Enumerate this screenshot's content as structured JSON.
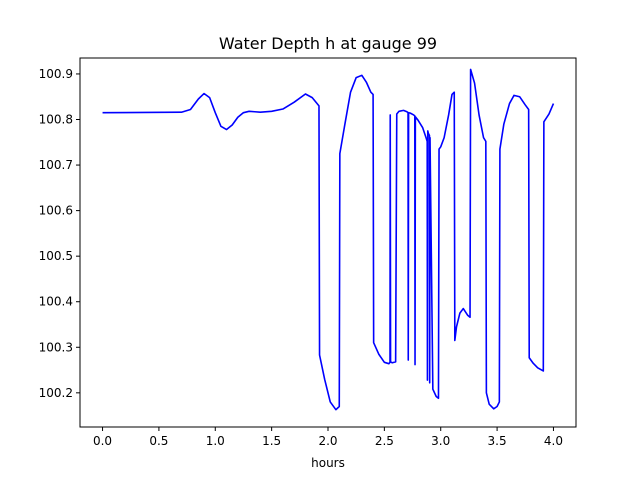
{
  "chart_data": {
    "type": "line",
    "title": "Water Depth h at gauge 99",
    "xlabel": "hours",
    "ylabel": "",
    "xlim": [
      -0.2,
      4.2
    ],
    "ylim": [
      100.125,
      100.935
    ],
    "xticks": [
      0.0,
      0.5,
      1.0,
      1.5,
      2.0,
      2.5,
      3.0,
      3.5,
      4.0
    ],
    "xtick_labels": [
      "0.0",
      "0.5",
      "1.0",
      "1.5",
      "2.0",
      "2.5",
      "3.0",
      "3.5",
      "4.0"
    ],
    "yticks": [
      100.2,
      100.3,
      100.4,
      100.5,
      100.6,
      100.7,
      100.8,
      100.9
    ],
    "ytick_labels": [
      "100.2",
      "100.3",
      "100.4",
      "100.5",
      "100.6",
      "100.7",
      "100.8",
      "100.9"
    ],
    "grid": false,
    "series": [
      {
        "color": "#0000ff",
        "x": [
          0.0,
          0.7,
          0.78,
          0.85,
          0.9,
          0.95,
          1.0,
          1.05,
          1.1,
          1.15,
          1.2,
          1.25,
          1.3,
          1.35,
          1.4,
          1.5,
          1.6,
          1.7,
          1.8,
          1.86,
          1.92,
          1.925,
          1.97,
          2.02,
          2.07,
          2.1,
          2.105,
          2.15,
          2.2,
          2.25,
          2.3,
          2.34,
          2.38,
          2.4,
          2.405,
          2.45,
          2.5,
          2.54,
          2.55,
          2.552,
          2.555,
          2.57,
          2.6,
          2.61,
          2.63,
          2.67,
          2.7,
          2.71,
          2.712,
          2.715,
          2.73,
          2.76,
          2.77,
          2.772,
          2.775,
          2.8,
          2.84,
          2.87,
          2.88,
          2.882,
          2.885,
          2.89,
          2.9,
          2.902,
          2.905,
          2.93,
          2.96,
          2.98,
          2.985,
          3.0,
          3.03,
          3.07,
          3.1,
          3.12,
          3.125,
          3.14,
          3.17,
          3.2,
          3.24,
          3.26,
          3.265,
          3.3,
          3.34,
          3.38,
          3.4,
          3.405,
          3.43,
          3.47,
          3.5,
          3.52,
          3.525,
          3.56,
          3.61,
          3.65,
          3.7,
          3.75,
          3.78,
          3.785,
          3.82,
          3.86,
          3.91,
          3.915,
          3.96,
          4.0
        ],
        "y": [
          100.815,
          100.816,
          100.822,
          100.845,
          100.857,
          100.848,
          100.815,
          100.785,
          100.778,
          100.788,
          100.805,
          100.815,
          100.818,
          100.817,
          100.816,
          100.818,
          100.823,
          100.838,
          100.856,
          100.848,
          100.83,
          100.283,
          100.23,
          100.18,
          100.163,
          100.17,
          100.725,
          100.79,
          100.86,
          100.892,
          100.897,
          100.882,
          100.86,
          100.855,
          100.31,
          100.285,
          100.267,
          100.264,
          100.267,
          100.81,
          100.268,
          100.266,
          100.268,
          100.812,
          100.818,
          100.82,
          100.817,
          100.815,
          100.272,
          100.815,
          100.814,
          100.81,
          100.808,
          100.262,
          100.806,
          100.798,
          100.782,
          100.76,
          100.752,
          100.228,
          100.775,
          100.77,
          100.765,
          100.222,
          100.76,
          100.208,
          100.192,
          100.188,
          100.735,
          100.74,
          100.76,
          100.81,
          100.855,
          100.86,
          100.315,
          100.345,
          100.375,
          100.385,
          100.37,
          100.366,
          100.91,
          100.88,
          100.81,
          100.76,
          100.752,
          100.2,
          100.175,
          100.165,
          100.17,
          100.18,
          100.735,
          100.79,
          100.835,
          100.853,
          100.85,
          100.832,
          100.822,
          100.277,
          100.265,
          100.255,
          100.248,
          100.795,
          100.812,
          100.835
        ]
      }
    ]
  }
}
